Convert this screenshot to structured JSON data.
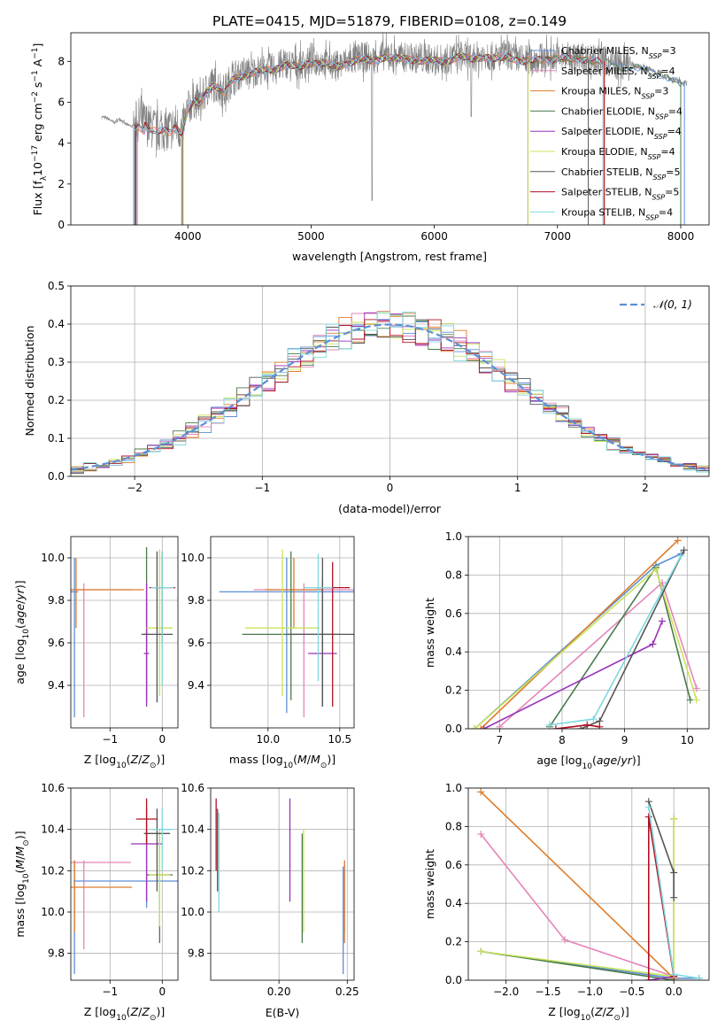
{
  "figure": {
    "title": "PLATE=0415, MJD=51879, FIBERID=0108, z=0.149"
  },
  "chart_data": [
    {
      "id": "spectrum",
      "type": "line",
      "xlabel": "wavelength [Angstrom, rest frame]",
      "ylabel": "Flux [f_λ10^-17 erg cm^-2 s^-1 A^-1]",
      "xlim": [
        3050,
        8230
      ],
      "ylim": [
        0,
        9.4
      ],
      "xticks": [
        4000,
        5000,
        6000,
        7000,
        8000
      ],
      "yticks": [
        0,
        2,
        4,
        6,
        8
      ],
      "grid": false,
      "legend_position": "top-right",
      "data_color": "#808080",
      "data_points": [
        [
          3300,
          5.3
        ],
        [
          3350,
          5.2
        ],
        [
          3400,
          5.0
        ],
        [
          3450,
          5.2
        ],
        [
          3500,
          4.9
        ],
        [
          3560,
          4.8
        ],
        [
          3600,
          5.2
        ],
        [
          3650,
          5.0
        ],
        [
          3700,
          4.8
        ],
        [
          3750,
          4.6
        ],
        [
          3800,
          4.7
        ],
        [
          3850,
          4.6
        ],
        [
          3900,
          4.9
        ],
        [
          3950,
          4.6
        ],
        [
          4000,
          5.7
        ],
        [
          4050,
          6.1
        ],
        [
          4100,
          6.0
        ],
        [
          4150,
          6.6
        ],
        [
          4200,
          6.9
        ],
        [
          4250,
          6.8
        ],
        [
          4300,
          6.5
        ],
        [
          4350,
          7.1
        ],
        [
          4400,
          7.3
        ],
        [
          4450,
          7.4
        ],
        [
          4500,
          7.5
        ],
        [
          4600,
          7.6
        ],
        [
          4700,
          7.7
        ],
        [
          4800,
          7.9
        ],
        [
          4900,
          7.8
        ],
        [
          5000,
          8.0
        ],
        [
          5100,
          8.0
        ],
        [
          5200,
          7.8
        ],
        [
          5300,
          8.0
        ],
        [
          5400,
          8.2
        ],
        [
          5500,
          8.1
        ],
        [
          5600,
          8.3
        ],
        [
          5700,
          8.2
        ],
        [
          5800,
          8.2
        ],
        [
          5900,
          8.1
        ],
        [
          6000,
          8.1
        ],
        [
          6100,
          8.1
        ],
        [
          6200,
          8.3
        ],
        [
          6300,
          8.2
        ],
        [
          6400,
          8.3
        ],
        [
          6500,
          8.2
        ],
        [
          6600,
          8.3
        ],
        [
          6700,
          8.1
        ],
        [
          6800,
          8.1
        ],
        [
          6900,
          8.2
        ],
        [
          7000,
          8.2
        ],
        [
          7100,
          8.2
        ],
        [
          7200,
          8.2
        ],
        [
          7300,
          8.1
        ],
        [
          7400,
          8.0
        ],
        [
          7500,
          7.8
        ],
        [
          7600,
          7.8
        ],
        [
          7700,
          7.7
        ],
        [
          7800,
          7.5
        ],
        [
          7900,
          7.2
        ],
        [
          8000,
          7.0
        ],
        [
          8050,
          6.9
        ]
      ],
      "series": [
        {
          "name": "Chabrier MILES, N_SSP=3",
          "color": "#5c8fd6"
        },
        {
          "name": "Salpeter MILES, N_SSP=4",
          "color": "#e584b9"
        },
        {
          "name": "Kroupa MILES, N_SSP=3",
          "color": "#df7c29"
        },
        {
          "name": "Chabrier ELODIE, N_SSP=4",
          "color": "#4a7a4a"
        },
        {
          "name": "Salpeter ELODIE, N_SSP=4",
          "color": "#9932b8"
        },
        {
          "name": "Kroupa ELODIE, N_SSP=4",
          "color": "#c8e35a"
        },
        {
          "name": "Chabrier STELIB, N_SSP=5",
          "color": "#555555"
        },
        {
          "name": "Salpeter STELIB, N_SSP=5",
          "color": "#b01020"
        },
        {
          "name": "Kroupa STELIB, N_SSP=4",
          "color": "#7fd8df"
        }
      ]
    },
    {
      "id": "residuals",
      "type": "line",
      "xlabel": "(data-model)/error",
      "ylabel": "Normed distribution",
      "xlim": [
        -2.5,
        2.5
      ],
      "ylim": [
        0,
        0.5
      ],
      "xticks": [
        -2,
        -1,
        0,
        1,
        2
      ],
      "yticks": [
        0.0,
        0.1,
        0.2,
        0.3,
        0.4,
        0.5
      ],
      "grid": true,
      "legend_position": "top-right",
      "gaussian_label": "𝒩(0, 1)",
      "gaussian_color": "#5c8fd6"
    },
    {
      "id": "z-age",
      "type": "scatter",
      "xlabel": "Z [log10(Z/Z⊙)]",
      "ylabel": "age [log10(age/yr)]",
      "xlim": [
        -1.75,
        0.3
      ],
      "ylim": [
        9.2,
        10.1
      ],
      "xticks": [
        -1,
        0
      ],
      "yticks": [
        9.4,
        9.6,
        9.8,
        10.0
      ],
      "grid": true,
      "points": [
        {
          "x": -1.68,
          "y": 9.84,
          "xerr": 0.07,
          "ylo": 9.25,
          "yhi": 10.0,
          "s": 0
        },
        {
          "x": -1.5,
          "y": 9.85,
          "xerr": 0.9,
          "ylo": 9.25,
          "yhi": 9.88,
          "s": 1
        },
        {
          "x": -1.65,
          "y": 9.85,
          "xerr": 1.3,
          "ylo": 9.67,
          "yhi": 10.0,
          "s": 2
        },
        {
          "x": -0.3,
          "y": 9.64,
          "xerr": 0.05,
          "ylo": 9.32,
          "yhi": 10.05,
          "s": 3
        },
        {
          "x": -0.3,
          "y": 9.55,
          "xerr": 0.05,
          "ylo": 9.3,
          "yhi": 9.88,
          "s": 4
        },
        {
          "x": -0.05,
          "y": 9.67,
          "xerr": 0.25,
          "ylo": 9.35,
          "yhi": 10.04,
          "s": 5
        },
        {
          "x": -0.1,
          "y": 9.64,
          "xerr": 0.3,
          "ylo": 9.32,
          "yhi": 10.03,
          "s": 6
        },
        {
          "x": 0.0,
          "y": 9.86,
          "xerr": 0.25,
          "ylo": 9.6,
          "yhi": 10.03,
          "s": 7
        },
        {
          "x": 0.0,
          "y": 9.86,
          "xerr": 0.22,
          "ylo": 9.4,
          "yhi": 10.03,
          "s": 8
        }
      ]
    },
    {
      "id": "mass-age",
      "type": "scatter",
      "xlabel": "mass [log10(M/M⊙)]",
      "ylabel": "",
      "xlim": [
        9.6,
        10.6
      ],
      "ylim": [
        9.2,
        10.1
      ],
      "xticks": [
        10.0,
        10.5
      ],
      "yticks": [
        9.4,
        9.6,
        9.8,
        10.0
      ],
      "grid": true,
      "points": [
        {
          "x": 10.13,
          "y": 9.84,
          "xerr": 0.47,
          "ylo": 9.27,
          "yhi": 10.0,
          "s": 0
        },
        {
          "x": 10.25,
          "y": 9.85,
          "xerr": 0.35,
          "ylo": 9.25,
          "yhi": 9.88,
          "s": 1
        },
        {
          "x": 10.18,
          "y": 9.85,
          "xerr": 0.2,
          "ylo": 9.67,
          "yhi": 10.0,
          "s": 2
        },
        {
          "x": 10.16,
          "y": 9.64,
          "xerr": 0.34,
          "ylo": 9.33,
          "yhi": 10.03,
          "s": 3
        },
        {
          "x": 10.38,
          "y": 9.55,
          "xerr": 0.1,
          "ylo": 9.3,
          "yhi": 9.9,
          "s": 4
        },
        {
          "x": 10.1,
          "y": 9.67,
          "xerr": 0.26,
          "ylo": 9.35,
          "yhi": 10.04,
          "s": 5
        },
        {
          "x": 10.38,
          "y": 9.64,
          "xerr": 0.25,
          "ylo": 9.3,
          "yhi": 10.0,
          "s": 6
        },
        {
          "x": 10.45,
          "y": 9.86,
          "xerr": 0.12,
          "ylo": 9.3,
          "yhi": 9.98,
          "s": 7
        },
        {
          "x": 10.35,
          "y": 9.86,
          "xerr": 0.1,
          "ylo": 9.42,
          "yhi": 10.02,
          "s": 8
        }
      ]
    },
    {
      "id": "age-weight",
      "type": "line",
      "xlabel": "age [log10(age/yr)]",
      "ylabel": "mass weight",
      "xlim": [
        6.5,
        10.35
      ],
      "ylim": [
        0,
        1
      ],
      "xticks": [
        7,
        8,
        9,
        10
      ],
      "yticks": [
        0.0,
        0.2,
        0.4,
        0.6,
        0.8,
        1.0
      ],
      "grid": true,
      "series": [
        {
          "s": 0,
          "points": [
            [
              6.6,
              0.0
            ],
            [
              9.5,
              0.85
            ],
            [
              9.9,
              0.91
            ]
          ]
        },
        {
          "s": 1,
          "points": [
            [
              7.0,
              0.01
            ],
            [
              9.6,
              0.76
            ],
            [
              10.15,
              0.21
            ]
          ]
        },
        {
          "s": 2,
          "points": [
            [
              6.7,
              0.0
            ],
            [
              9.85,
              0.98
            ]
          ]
        },
        {
          "s": 3,
          "points": [
            [
              7.8,
              0.01
            ],
            [
              9.5,
              0.84
            ],
            [
              10.05,
              0.15
            ]
          ]
        },
        {
          "s": 4,
          "points": [
            [
              6.75,
              0.0
            ],
            [
              9.45,
              0.44
            ],
            [
              9.6,
              0.56
            ]
          ]
        },
        {
          "s": 5,
          "points": [
            [
              6.6,
              0.0
            ],
            [
              9.5,
              0.83
            ],
            [
              10.15,
              0.15
            ]
          ]
        },
        {
          "s": 6,
          "points": [
            [
              8.3,
              0.0
            ],
            [
              8.6,
              0.04
            ],
            [
              9.95,
              0.93
            ]
          ]
        },
        {
          "s": 7,
          "points": [
            [
              7.9,
              0.0
            ],
            [
              8.4,
              0.02
            ],
            [
              8.6,
              0.01
            ]
          ]
        },
        {
          "s": 8,
          "points": [
            [
              7.8,
              0.02
            ],
            [
              8.5,
              0.05
            ],
            [
              9.9,
              0.9
            ]
          ]
        }
      ]
    },
    {
      "id": "z-mass",
      "type": "scatter",
      "xlabel": "Z [log10(Z/Z⊙)]",
      "ylabel": "mass [log10(M/M⊙)]",
      "xlim": [
        -1.75,
        0.3
      ],
      "ylim": [
        9.67,
        10.6
      ],
      "xticks": [
        -1,
        0
      ],
      "yticks": [
        9.8,
        10.0,
        10.2,
        10.4,
        10.6
      ],
      "grid": true,
      "points": [
        {
          "x": -1.68,
          "y": 10.15,
          "xerr": 0.0,
          "ylo": 9.7,
          "yhi": 10.25,
          "s": 0
        },
        {
          "x": -1.5,
          "y": 10.24,
          "xerr": 0.9,
          "ylo": 9.82,
          "yhi": 10.25,
          "s": 1
        },
        {
          "x": -1.68,
          "y": 10.12,
          "xerr": 1.1,
          "ylo": 9.9,
          "yhi": 10.25,
          "s": 2
        },
        {
          "x": -0.3,
          "y": 10.15,
          "xerr": 1.4,
          "ylo": 10.02,
          "yhi": 10.4,
          "s": 0
        },
        {
          "x": -0.05,
          "y": 10.18,
          "xerr": 0.25,
          "ylo": 9.85,
          "yhi": 10.38,
          "s": 3
        },
        {
          "x": -0.3,
          "y": 10.33,
          "xerr": 0.3,
          "ylo": 10.05,
          "yhi": 10.5,
          "s": 4
        },
        {
          "x": -0.05,
          "y": 10.18,
          "xerr": 0.2,
          "ylo": 9.93,
          "yhi": 10.4,
          "s": 5
        },
        {
          "x": -0.1,
          "y": 10.38,
          "xerr": 0.25,
          "ylo": 10.1,
          "yhi": 10.5,
          "s": 6
        },
        {
          "x": -0.3,
          "y": 10.45,
          "xerr": 0.2,
          "ylo": 10.33,
          "yhi": 10.55,
          "s": 7
        },
        {
          "x": 0.0,
          "y": 10.4,
          "xerr": 0.2,
          "ylo": 10.2,
          "yhi": 10.5,
          "s": 8
        }
      ]
    },
    {
      "id": "ebv-mass",
      "type": "scatter",
      "xlabel": "E(B-V)",
      "ylabel": "",
      "xlim": [
        0.15,
        0.255
      ],
      "ylim": [
        9.67,
        10.6
      ],
      "xticks": [
        0.2,
        0.25
      ],
      "yticks": [
        9.8,
        10.0,
        10.2,
        10.4,
        10.6
      ],
      "grid": true,
      "points": [
        {
          "x": 0.247,
          "ylo": 9.7,
          "yhi": 10.22,
          "s": 0
        },
        {
          "x": 0.248,
          "ylo": 9.9,
          "yhi": 10.25,
          "s": 1
        },
        {
          "x": 0.248,
          "ylo": 9.85,
          "yhi": 10.25,
          "s": 2
        },
        {
          "x": 0.217,
          "ylo": 9.85,
          "yhi": 10.38,
          "s": 3
        },
        {
          "x": 0.208,
          "ylo": 10.05,
          "yhi": 10.55,
          "s": 4
        },
        {
          "x": 0.218,
          "ylo": 9.9,
          "yhi": 10.4,
          "s": 5
        },
        {
          "x": 0.155,
          "ylo": 10.1,
          "yhi": 10.5,
          "s": 6
        },
        {
          "x": 0.154,
          "ylo": 10.2,
          "yhi": 10.55,
          "s": 7
        },
        {
          "x": 0.156,
          "ylo": 10.0,
          "yhi": 10.48,
          "s": 8
        }
      ]
    },
    {
      "id": "z-weight",
      "type": "line",
      "xlabel": "Z [log10(Z/Z⊙)]",
      "ylabel": "mass weight",
      "xlim": [
        -2.45,
        0.42
      ],
      "ylim": [
        0,
        1
      ],
      "xticks": [
        -2.0,
        -1.5,
        -1.0,
        -0.5,
        0.0
      ],
      "yticks": [
        0.0,
        0.2,
        0.4,
        0.6,
        0.8,
        1.0
      ],
      "grid": true,
      "series": [
        {
          "s": 0,
          "points": [
            [
              -2.3,
              0.15
            ],
            [
              0.0,
              0.01
            ],
            [
              0.3,
              0.01
            ]
          ]
        },
        {
          "s": 1,
          "points": [
            [
              -2.3,
              0.76
            ],
            [
              -1.3,
              0.21
            ],
            [
              0.0,
              0.02
            ]
          ]
        },
        {
          "s": 2,
          "points": [
            [
              -2.3,
              0.98
            ],
            [
              0.0,
              0.01
            ]
          ]
        },
        {
          "s": 3,
          "points": [
            [
              -2.3,
              0.15
            ],
            [
              0.0,
              0.0
            ],
            [
              0.0,
              0.84
            ]
          ]
        },
        {
          "s": 4,
          "points": [
            [
              -0.3,
              0.0
            ],
            [
              0.0,
              0.02
            ]
          ]
        },
        {
          "s": 5,
          "points": [
            [
              -2.3,
              0.15
            ],
            [
              0.0,
              0.02
            ],
            [
              0.0,
              0.84
            ]
          ]
        },
        {
          "s": 6,
          "points": [
            [
              -0.3,
              0.93
            ],
            [
              0.0,
              0.56
            ],
            [
              0.0,
              0.43
            ]
          ]
        },
        {
          "s": 7,
          "points": [
            [
              -0.3,
              0.0
            ],
            [
              -0.3,
              0.85
            ],
            [
              0.0,
              0.02
            ]
          ]
        },
        {
          "s": 8,
          "points": [
            [
              -0.3,
              0.9
            ],
            [
              0.0,
              0.03
            ],
            [
              0.3,
              0.01
            ]
          ]
        }
      ]
    }
  ]
}
